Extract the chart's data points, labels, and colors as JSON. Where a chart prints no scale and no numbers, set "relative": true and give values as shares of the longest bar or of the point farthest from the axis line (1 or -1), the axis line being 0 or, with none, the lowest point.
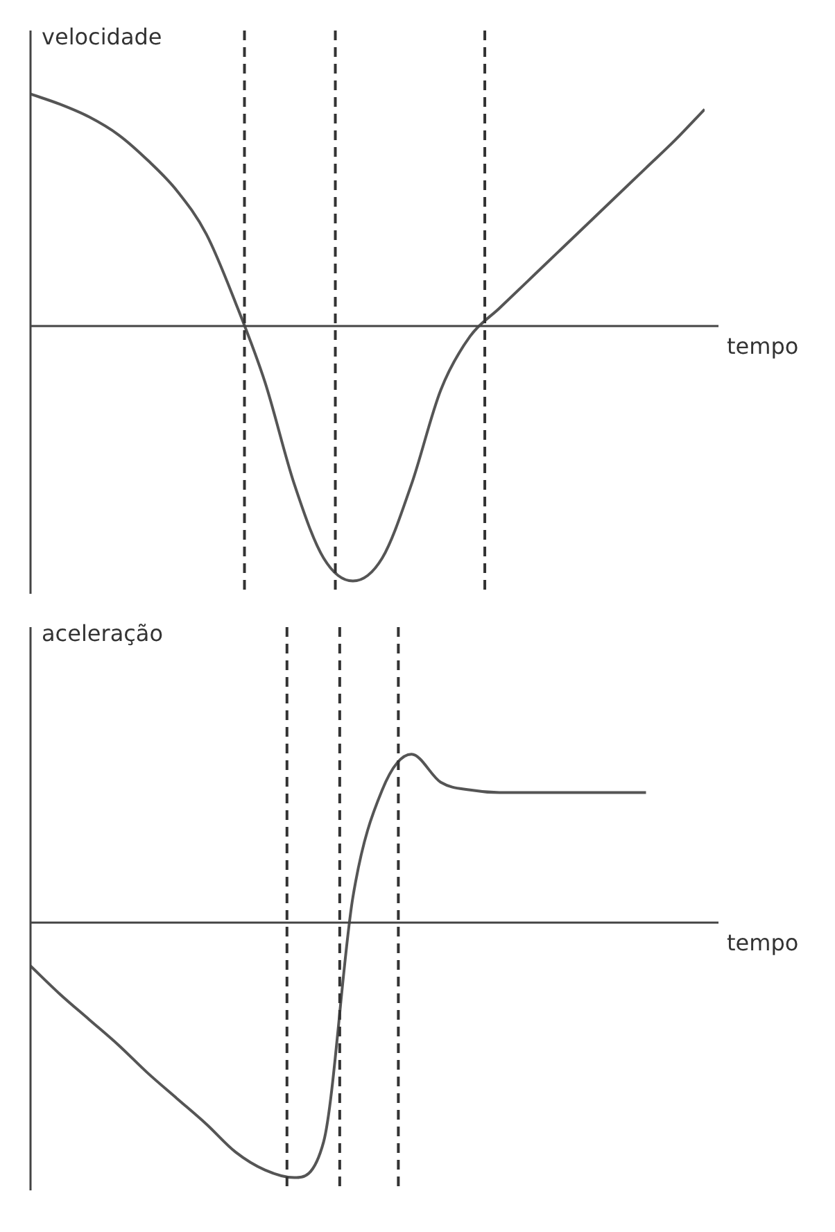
{
  "chart_data": [
    {
      "type": "line",
      "relative": true,
      "ylabel": "velocidade",
      "xlabel": "tempo",
      "categories": [
        null,
        null,
        null,
        null,
        null,
        null,
        null,
        null,
        null,
        null,
        null,
        null,
        null,
        null,
        null,
        null,
        null,
        null,
        null,
        null,
        null,
        null,
        null,
        null
      ],
      "series": [
        {
          "color": "#555555",
          "values": [
            0.91,
            0.87,
            0.82,
            0.75,
            0.65,
            0.53,
            0.36,
            0.09,
            -0.22,
            -0.62,
            -0.91,
            -1,
            -0.91,
            -0.62,
            -0.25,
            -0.04,
            0.07,
            0.18,
            0.29,
            0.4,
            0.51,
            0.62,
            0.73,
            0.85
          ]
        }
      ],
      "legend": false,
      "marker": "none",
      "line_style": "solid"
    },
    {
      "type": "line",
      "relative": true,
      "ylabel": "aceleração",
      "xlabel": "tempo",
      "categories": [
        null,
        null,
        null,
        null,
        null,
        null,
        null,
        null,
        null,
        null,
        null,
        null,
        null,
        null,
        null,
        null,
        null,
        null,
        null,
        null,
        null,
        null,
        null,
        null
      ],
      "series": [
        {
          "color": "#555555",
          "values": [
            -0.17,
            -0.28,
            -0.38,
            -0.48,
            -0.59,
            -0.69,
            -0.79,
            -0.9,
            -0.97,
            -1,
            -0.86,
            0.1,
            0.52,
            0.66,
            0.55,
            0.52,
            0.51,
            0.51,
            0.51,
            0.51,
            0.51,
            0.51,
            null,
            null
          ]
        }
      ],
      "legend": false,
      "marker": "none",
      "line_style": "solid"
    }
  ]
}
